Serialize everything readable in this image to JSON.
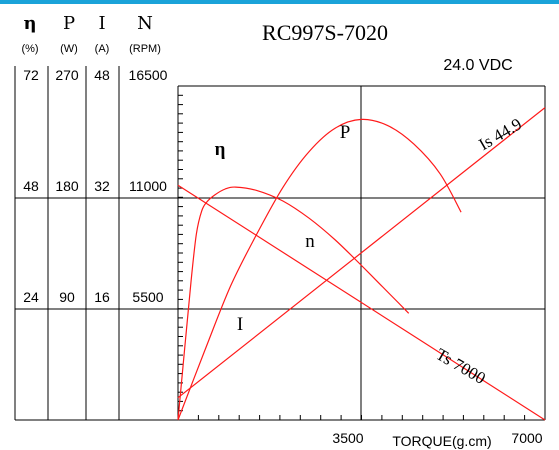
{
  "chart_data": {
    "type": "line",
    "title": "RC997S-7020",
    "subtitle": "24.0 VDC",
    "xlabel": "TORQUE(g.cm)",
    "x_tick_labels": [
      "3500",
      "7000"
    ],
    "xlim": [
      0,
      7000
    ],
    "grid": true,
    "axes": [
      {
        "symbol": "η",
        "unit": "(%)",
        "ticks": [
          "72",
          "48",
          "24"
        ],
        "max": 72
      },
      {
        "symbol": "P",
        "unit": "(W)",
        "ticks": [
          "270",
          "180",
          "90"
        ],
        "max": 270
      },
      {
        "symbol": "I",
        "unit": "(A)",
        "ticks": [
          "48",
          "32",
          "16"
        ],
        "max": 48
      },
      {
        "symbol": "N",
        "unit": "(RPM)",
        "ticks": [
          "16500",
          "11000",
          "5500"
        ],
        "max": 16500
      }
    ],
    "series": [
      {
        "name": "η",
        "axis": "η",
        "x": [
          0,
          250,
          350,
          450,
          550,
          700,
          900,
          1100,
          1500,
          2000,
          2500,
          3000,
          3500,
          4000,
          4400
        ],
        "y": [
          0,
          30,
          40,
          45,
          47,
          48.5,
          49.8,
          50.2,
          49.5,
          47.2,
          43.5,
          38.8,
          33.3,
          27.6,
          23.0
        ]
      },
      {
        "name": "P",
        "axis": "P",
        "x": [
          0,
          500,
          1000,
          1500,
          2000,
          2500,
          3000,
          3500,
          4000,
          4500,
          5000,
          5400
        ],
        "y": [
          0,
          55,
          108,
          150,
          188,
          217,
          236,
          243,
          238,
          223,
          199,
          168
        ]
      },
      {
        "name": "I",
        "axis": "I",
        "x": [
          0,
          7000
        ],
        "y": [
          3.2,
          44.9
        ]
      },
      {
        "name": "n",
        "axis": "N",
        "x": [
          0,
          7000
        ],
        "y": [
          11600,
          0
        ]
      }
    ],
    "annotations": [
      "Is 44.9",
      "Ts 7000"
    ]
  }
}
